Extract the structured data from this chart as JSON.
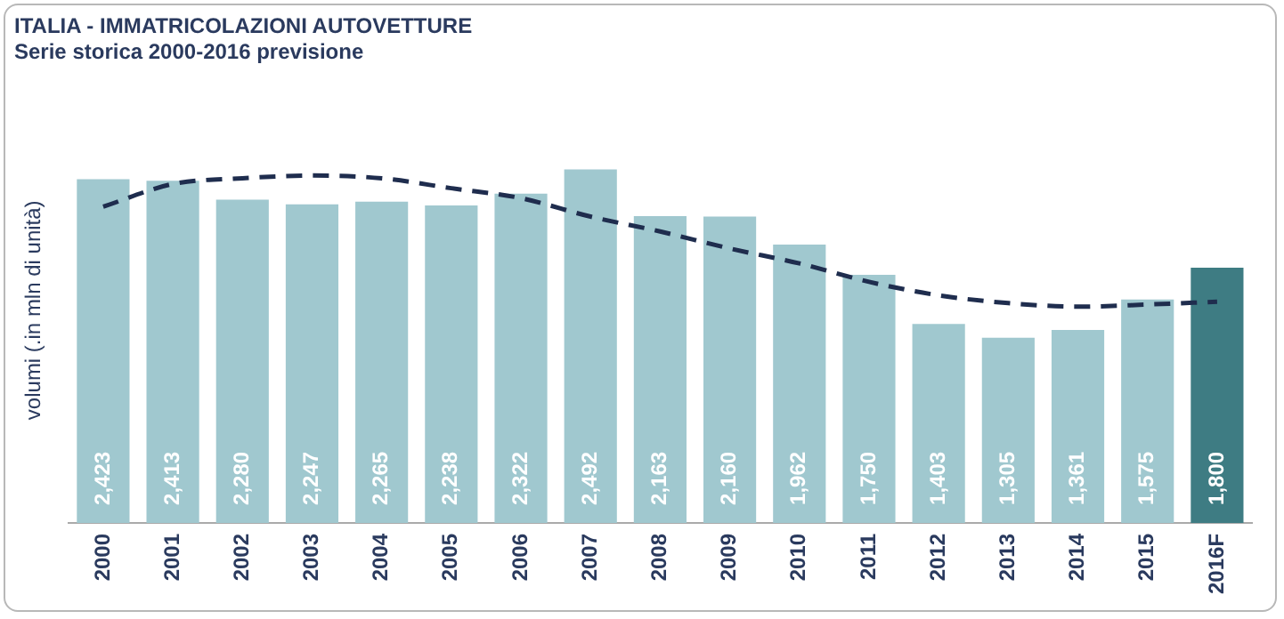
{
  "chart_data": {
    "type": "bar",
    "title": "ITALIA - IMMATRICOLAZIONI AUTOVETTURE",
    "subtitle": "Serie storica 2000-2016 previsione",
    "ylabel": "volumi (.in mln di unità)",
    "categories": [
      "2000",
      "2001",
      "2002",
      "2003",
      "2004",
      "2005",
      "2006",
      "2007",
      "2008",
      "2009",
      "2010",
      "2011",
      "2012",
      "2013",
      "2014",
      "2015",
      "2016F"
    ],
    "series": [
      {
        "colors": [
          "#a0c8cf",
          "#a0c8cf",
          "#a0c8cf",
          "#a0c8cf",
          "#a0c8cf",
          "#a0c8cf",
          "#a0c8cf",
          "#a0c8cf",
          "#a0c8cf",
          "#a0c8cf",
          "#a0c8cf",
          "#a0c8cf",
          "#a0c8cf",
          "#a0c8cf",
          "#a0c8cf",
          "#a0c8cf",
          "#3e7c83"
        ],
        "values": [
          2423,
          2413,
          2280,
          2247,
          2265,
          2238,
          2322,
          2492,
          2163,
          2160,
          1962,
          1750,
          1403,
          1305,
          1361,
          1575,
          1800
        ],
        "value_labels": [
          "2,423",
          "2,413",
          "2,280",
          "2,247",
          "2,265",
          "2,238",
          "2,322",
          "2,492",
          "2,163",
          "2,160",
          "1,962",
          "1,750",
          "1,403",
          "1,305",
          "1,361",
          "1,575",
          "1,800"
        ]
      },
      {
        "type": "line",
        "color": "#1f2d4e",
        "line_style": "dashed",
        "marker": "none",
        "values": [
          2230,
          2390,
          2430,
          2450,
          2430,
          2360,
          2290,
          2160,
          2055,
          1935,
          1830,
          1700,
          1605,
          1550,
          1525,
          1540,
          1560
        ]
      }
    ],
    "tick_labels": "x",
    "grid": false,
    "legend": false
  }
}
